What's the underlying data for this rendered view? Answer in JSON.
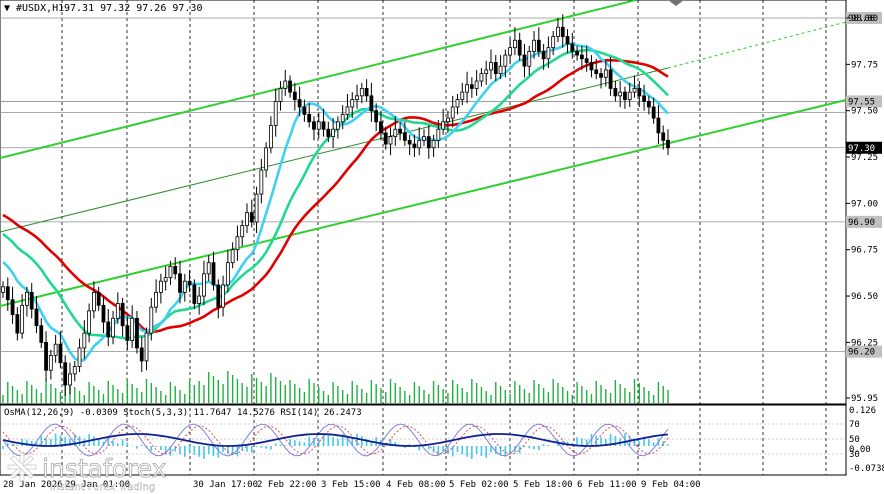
{
  "header": {
    "symbol": "#USDX,H1",
    "ohlc": "97.31 97.32 97.26 97.30"
  },
  "chart_data": {
    "type": "candlestick",
    "symbol": "#USDX",
    "timeframe": "H1",
    "ylim": [
      95.92,
      98.08
    ],
    "y_ticks": [
      "98.00",
      "97.75",
      "97.50",
      "97.25",
      "97.00",
      "96.75",
      "96.50",
      "96.25",
      "95.95"
    ],
    "level_tags": [
      {
        "value": "98.00",
        "color": "#c0c0c0",
        "text_color": "#000000"
      },
      {
        "value": "97.55",
        "color": "#c0c0c0",
        "text_color": "#000000"
      },
      {
        "value": "97.30",
        "color": "#000000",
        "text_color": "#ffffff"
      },
      {
        "value": "96.90",
        "color": "#c0c0c0",
        "text_color": "#000000"
      },
      {
        "value": "96.20",
        "color": "#c0c0c0",
        "text_color": "#000000"
      }
    ],
    "x_tick_labels": [
      "28 Jan 2026",
      "29 Jan 01:00",
      "30 Jan 17:00",
      "2 Feb 22:00",
      "3 Feb 15:00",
      "4 Feb 08:00",
      "5 Feb 02:00",
      "5 Feb 18:00",
      "6 Feb 11:00",
      "9 Feb 04:00"
    ],
    "candles_close": [
      96.55,
      96.48,
      96.4,
      96.3,
      96.45,
      96.52,
      96.43,
      96.34,
      96.25,
      96.1,
      96.18,
      96.24,
      96.14,
      96.02,
      96.08,
      96.12,
      96.22,
      96.3,
      96.42,
      96.52,
      96.45,
      96.36,
      96.28,
      96.38,
      96.46,
      96.34,
      96.26,
      96.38,
      96.22,
      96.15,
      96.3,
      96.44,
      96.52,
      96.58,
      96.6,
      96.66,
      96.62,
      96.52,
      96.58,
      96.56,
      96.46,
      96.5,
      96.62,
      96.68,
      96.56,
      96.44,
      96.56,
      96.68,
      96.75,
      96.82,
      96.88,
      96.95,
      96.9,
      97.05,
      97.18,
      97.3,
      97.42,
      97.55,
      97.62,
      97.66,
      97.6,
      97.56,
      97.52,
      97.48,
      97.44,
      97.4,
      97.44,
      97.4,
      97.36,
      97.4,
      97.44,
      97.48,
      97.52,
      97.56,
      97.58,
      97.62,
      97.58,
      97.5,
      97.44,
      97.38,
      97.32,
      97.36,
      97.4,
      97.38,
      97.34,
      97.32,
      97.3,
      97.34,
      97.36,
      97.3,
      97.34,
      97.4,
      97.44,
      97.46,
      97.52,
      97.56,
      97.6,
      97.64,
      97.62,
      97.66,
      97.7,
      97.72,
      97.76,
      97.7,
      97.74,
      97.8,
      97.84,
      97.88,
      97.8,
      97.74,
      97.82,
      97.88,
      97.82,
      97.78,
      97.84,
      97.9,
      97.95,
      97.9,
      97.86,
      97.82,
      97.8,
      97.78,
      97.76,
      97.72,
      97.7,
      97.68,
      97.72,
      97.62,
      97.58,
      97.6,
      97.56,
      97.6,
      97.62,
      97.58,
      97.55,
      97.52,
      97.46,
      97.38,
      97.34,
      97.3
    ],
    "series": [
      {
        "name": "MA slow (red)",
        "color": "#e00000"
      },
      {
        "name": "MA mid (green-cyan)",
        "color": "#20d890"
      },
      {
        "name": "MA fast (cyan)",
        "color": "#40d0f0"
      }
    ],
    "indicator_panel": {
      "label": "OsMA(12,26,9) -0.0309  Stoch(5,3,3) 11.7647 14.5276  RSI(14) 26.2473",
      "ticks": [
        "0.126",
        "70",
        "50",
        "30",
        "0.00",
        "-0.0738"
      ]
    }
  },
  "watermark": {
    "brand": "instaforex",
    "tagline": "Instant Forex Trading"
  }
}
